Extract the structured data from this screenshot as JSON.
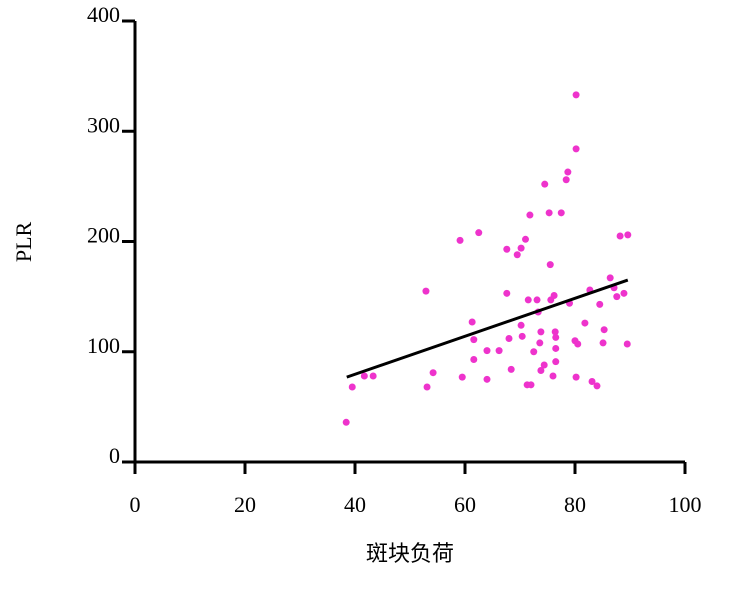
{
  "chart_data": {
    "type": "scatter",
    "x_label": "斑块负荷",
    "y_label": "PLR",
    "color": "#ee33cc",
    "line_color": "#000000",
    "xlim": [
      0,
      100
    ],
    "ylim": [
      0,
      400
    ],
    "xticks": [
      0,
      20,
      40,
      60,
      80,
      100
    ],
    "yticks": [
      0,
      100,
      200,
      300,
      400
    ],
    "x": [
      38.4,
      39.5,
      41.7,
      43.3,
      52.9,
      53.1,
      54.2,
      59.1,
      59.5,
      61.3,
      61.6,
      61.6,
      62.5,
      64,
      64,
      66.2,
      67.6,
      67.6,
      68,
      68.4,
      69.5,
      70.2,
      70.2,
      70.4,
      71,
      71.3,
      71.5,
      71.8,
      72,
      72.5,
      73.1,
      73.3,
      73.6,
      73.8,
      73.8,
      74.4,
      74.5,
      75.3,
      75.5,
      75.6,
      76,
      76.2,
      76.4,
      76.5,
      76.5,
      76.5,
      77.5,
      78.4,
      78.7,
      79,
      80,
      80.2,
      80.2,
      80.2,
      80.5,
      81.8,
      82.7,
      83.1,
      84,
      84.5,
      85.1,
      85.3,
      86.4,
      87.1,
      87.6,
      88.2,
      88.9,
      89.5,
      89.6
    ],
    "values": [
      36,
      68,
      78,
      78,
      155,
      68,
      81,
      201,
      77,
      127,
      111,
      93,
      208,
      101,
      75,
      101,
      193,
      153,
      112,
      84,
      188,
      194,
      124,
      114,
      202,
      70,
      147,
      224,
      70,
      100,
      147,
      136,
      108,
      118,
      83,
      88,
      252,
      226,
      179,
      147,
      78,
      151,
      118,
      103,
      91,
      113,
      226,
      256,
      263,
      144,
      110,
      333,
      284,
      77,
      107,
      126,
      156,
      73,
      69,
      143,
      108,
      120,
      167,
      158,
      150,
      205,
      153,
      107,
      206
    ],
    "trendline": {
      "x": [
        38.5,
        89.6
      ],
      "values": [
        77,
        165
      ]
    }
  }
}
